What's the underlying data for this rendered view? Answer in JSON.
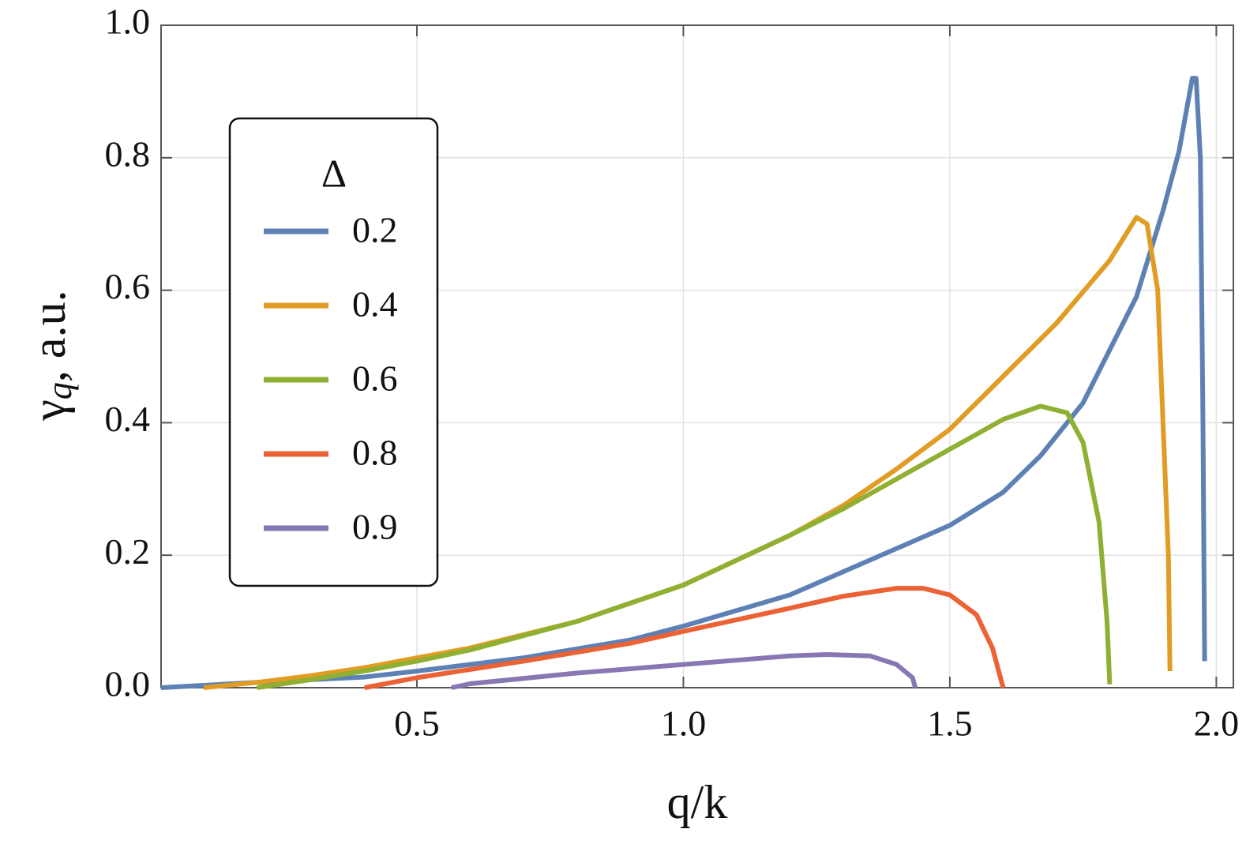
{
  "chart_data": {
    "type": "line",
    "x_label": "q/k",
    "y_label": {
      "symbol": "γ",
      "subscript": "q",
      "unit": ", a.u."
    },
    "legend_title": "Δ",
    "legend_position": "upper left",
    "grid": true,
    "xlim": [
      0.02,
      2.032
    ],
    "ylim": [
      0,
      1
    ],
    "xticks": [
      0.5,
      {
        "value": 1,
        "label": "1.0"
      },
      1.5,
      {
        "value": 2,
        "label": "2.0"
      }
    ],
    "yticks": [
      {
        "value": 0,
        "label": "0.0"
      },
      0.2,
      0.4,
      0.6,
      0.8,
      {
        "value": 1,
        "label": "1.0"
      }
    ],
    "series": [
      {
        "name": "0.2",
        "color": "#5e81b5",
        "x": [
          0.02,
          0.2,
          0.4,
          0.5,
          0.7,
          0.9,
          1.0,
          1.2,
          1.4,
          1.5,
          1.6,
          1.67,
          1.75,
          1.8,
          1.85,
          1.9,
          1.93,
          1.955,
          1.962,
          1.97,
          1.975,
          1.978
        ],
        "values": [
          0.0,
          0.008,
          0.016,
          0.025,
          0.045,
          0.072,
          0.093,
          0.14,
          0.21,
          0.245,
          0.295,
          0.35,
          0.43,
          0.51,
          0.59,
          0.72,
          0.81,
          0.92,
          0.92,
          0.8,
          0.4,
          0.04
        ]
      },
      {
        "name": "0.4",
        "color": "#e19c24",
        "x": [
          0.1,
          0.2,
          0.3,
          0.4,
          0.5,
          0.6,
          0.8,
          1.0,
          1.2,
          1.3,
          1.4,
          1.5,
          1.6,
          1.7,
          1.8,
          1.85,
          1.87,
          1.89,
          1.9,
          1.91,
          1.913
        ],
        "values": [
          0.0,
          0.008,
          0.018,
          0.03,
          0.045,
          0.06,
          0.1,
          0.155,
          0.23,
          0.275,
          0.33,
          0.39,
          0.47,
          0.55,
          0.645,
          0.71,
          0.7,
          0.6,
          0.4,
          0.2,
          0.025
        ]
      },
      {
        "name": "0.6",
        "color": "#8fb032",
        "x": [
          0.2,
          0.3,
          0.4,
          0.5,
          0.6,
          0.8,
          1.0,
          1.2,
          1.3,
          1.4,
          1.5,
          1.6,
          1.67,
          1.72,
          1.75,
          1.78,
          1.795,
          1.8
        ],
        "values": [
          0.0,
          0.012,
          0.025,
          0.04,
          0.057,
          0.1,
          0.155,
          0.23,
          0.27,
          0.315,
          0.36,
          0.405,
          0.425,
          0.415,
          0.37,
          0.25,
          0.1,
          0.005
        ]
      },
      {
        "name": "0.8",
        "color": "#eb6235",
        "x": [
          0.402,
          0.5,
          0.7,
          0.9,
          1.0,
          1.2,
          1.3,
          1.4,
          1.45,
          1.5,
          1.55,
          1.58,
          1.6
        ],
        "values": [
          0.0,
          0.015,
          0.04,
          0.067,
          0.085,
          0.12,
          0.138,
          0.15,
          0.15,
          0.14,
          0.11,
          0.06,
          0.0
        ]
      },
      {
        "name": "0.9",
        "color": "#8778b3",
        "x": [
          0.565,
          0.6,
          0.8,
          1.0,
          1.2,
          1.27,
          1.35,
          1.4,
          1.43,
          1.435
        ],
        "values": [
          0.0,
          0.006,
          0.022,
          0.035,
          0.048,
          0.05,
          0.048,
          0.035,
          0.015,
          0.0
        ]
      }
    ]
  }
}
